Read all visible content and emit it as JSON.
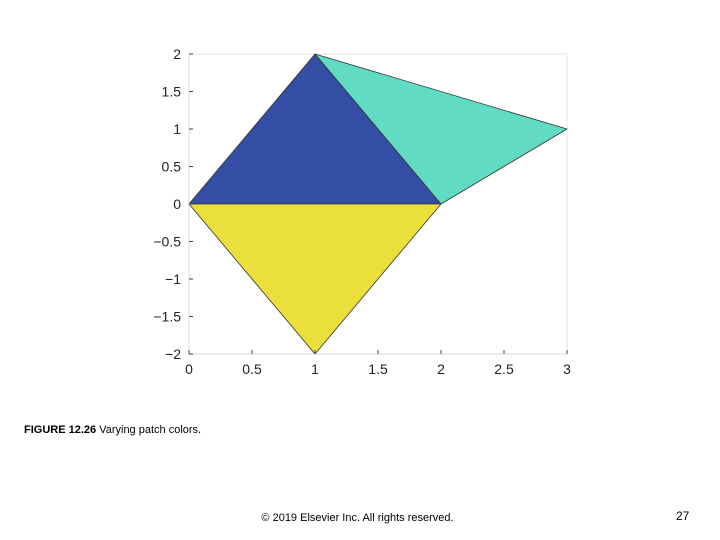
{
  "chart_data": {
    "type": "patch",
    "xlim": [
      0,
      3
    ],
    "ylim": [
      -2,
      2
    ],
    "x_ticks": [
      0,
      0.5,
      1,
      1.5,
      2,
      2.5,
      3
    ],
    "x_tick_labels": [
      "0",
      "0.5",
      "1",
      "1.5",
      "2",
      "2.5",
      "3"
    ],
    "y_ticks": [
      2,
      1.5,
      1,
      0.5,
      0,
      -0.5,
      -1,
      -1.5,
      -2
    ],
    "y_tick_labels": [
      "2",
      "1.5",
      "1",
      "0.5",
      "0",
      "−0.5",
      "−1",
      "−1.5",
      "−2"
    ],
    "grid": false,
    "patches": [
      {
        "vertices": [
          [
            0,
            0
          ],
          [
            1,
            2
          ],
          [
            2,
            0
          ]
        ],
        "color": "#344ea6"
      },
      {
        "vertices": [
          [
            1,
            2
          ],
          [
            3,
            1
          ],
          [
            2,
            0
          ]
        ],
        "color": "#62dbc4"
      },
      {
        "vertices": [
          [
            0,
            0
          ],
          [
            2,
            0
          ],
          [
            1,
            -2
          ]
        ],
        "color": "#ebdf3d"
      }
    ]
  },
  "caption": {
    "label": "FIGURE 12.26",
    "text": " Varying patch colors."
  },
  "footer": {
    "copyright": "© 2019 Elsevier Inc. All rights reserved.",
    "page_number": "27"
  }
}
